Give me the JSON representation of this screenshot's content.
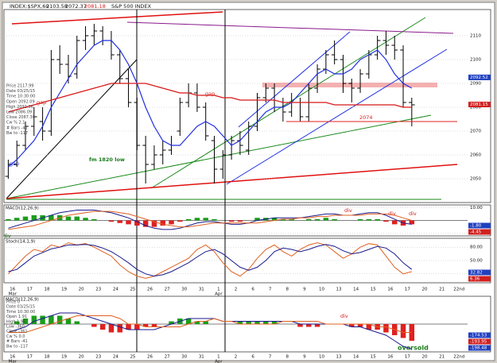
{
  "chart_data": [
    {
      "type": "ohlc",
      "title": "INDEX:$SPX,60",
      "subtitle": "S&P 500 INDEX",
      "header_values": [
        "2103.58",
        "2072.37",
        "2081.18"
      ],
      "categories": [
        "16",
        null,
        "17",
        null,
        "18",
        null,
        "19",
        null,
        "20",
        null,
        "23",
        null,
        "24",
        null,
        "25",
        null,
        "26",
        null,
        "27",
        null,
        "30",
        null,
        "31",
        null,
        "1",
        null,
        "2",
        null,
        "6",
        null,
        "7",
        null,
        "8",
        null,
        "9",
        null,
        "10",
        null,
        "13",
        null,
        "14",
        null,
        "15",
        null,
        "16",
        null,
        "17",
        null,
        "20",
        null,
        "21",
        null,
        "22nd",
        null
      ],
      "months": [
        "Mar",
        "Apr"
      ],
      "open": [
        2051,
        2056,
        2064,
        2072,
        2074,
        2070,
        2100,
        2098,
        2094,
        2108,
        2110,
        2112,
        2108,
        2102,
        2092,
        2082,
        2064,
        2056,
        2060,
        2062,
        2070,
        2082,
        2086,
        2080,
        2066,
        2054,
        2060,
        2066,
        2062,
        2072,
        2084,
        2088,
        2080,
        2078,
        2082,
        2076,
        2088,
        2096,
        2102,
        2100,
        2090,
        2088,
        2094,
        2102,
        2108,
        2106,
        2104,
        2082,
        null,
        null,
        null,
        null,
        null,
        null
      ],
      "high": [
        2058,
        2066,
        2074,
        2080,
        2080,
        2104,
        2106,
        2102,
        2110,
        2114,
        2115,
        2114,
        2112,
        2104,
        2096,
        2084,
        2068,
        2064,
        2066,
        2068,
        2084,
        2090,
        2090,
        2082,
        2068,
        2062,
        2068,
        2070,
        2074,
        2086,
        2090,
        2090,
        2084,
        2086,
        2084,
        2090,
        2098,
        2104,
        2108,
        2102,
        2092,
        2096,
        2104,
        2110,
        2112,
        2110,
        2106,
        2084,
        null,
        null,
        null,
        null,
        null,
        null
      ],
      "low": [
        2050,
        2055,
        2062,
        2068,
        2066,
        2068,
        2094,
        2090,
        2092,
        2104,
        2106,
        2106,
        2100,
        2090,
        2080,
        2062,
        2048,
        2054,
        2056,
        2060,
        2068,
        2080,
        2078,
        2066,
        2048,
        2050,
        2058,
        2060,
        2060,
        2070,
        2082,
        2078,
        2074,
        2076,
        2074,
        2074,
        2086,
        2094,
        2098,
        2086,
        2082,
        2086,
        2092,
        2100,
        2102,
        2100,
        2080,
        2072,
        null,
        null,
        null,
        null,
        null,
        null
      ],
      "close": [
        2056,
        2064,
        2072,
        2076,
        2070,
        2100,
        2098,
        2093,
        2108,
        2110,
        2112,
        2108,
        2102,
        2092,
        2082,
        2064,
        2056,
        2060,
        2062,
        2064,
        2082,
        2086,
        2080,
        2068,
        2054,
        2060,
        2066,
        2064,
        2072,
        2084,
        2088,
        2080,
        2078,
        2082,
        2076,
        2088,
        2096,
        2102,
        2100,
        2090,
        2088,
        2094,
        2102,
        2108,
        2106,
        2104,
        2082,
        2081,
        null,
        null,
        null,
        null,
        null,
        null
      ],
      "bar_color": "#000000",
      "lines": [
        {
          "color": "#1f2fe0",
          "values": [
            2055,
            2058,
            2062,
            2066,
            2072,
            2080,
            2086,
            2092,
            2098,
            2102,
            2106,
            2108,
            2108,
            2104,
            2098,
            2090,
            2080,
            2072,
            2066,
            2064,
            2064,
            2068,
            2072,
            2074,
            2072,
            2068,
            2064,
            2066,
            2070,
            2074,
            2078,
            2080,
            2080,
            2082,
            2086,
            2090,
            2094,
            2096,
            2094,
            2094,
            2096,
            2100,
            2102,
            2104,
            2100,
            2094,
            2090,
            2088,
            null,
            null,
            null,
            null,
            null,
            null
          ]
        },
        {
          "color": "#d81818",
          "values": [
            2078,
            2079,
            2080,
            2081,
            2082,
            2083,
            2084,
            2085,
            2086,
            2087,
            2088,
            2089,
            2090,
            2090,
            2090,
            2090,
            2090,
            2089,
            2088,
            2087,
            2086,
            2086,
            2085,
            2085,
            2085,
            2084,
            2084,
            2083,
            2083,
            2083,
            2083,
            2083,
            2082,
            2082,
            2082,
            2082,
            2082,
            2082,
            2081,
            2081,
            2081,
            2081,
            2081,
            2081,
            2081,
            2081,
            2080,
            2080,
            null,
            null,
            null,
            null,
            null,
            null
          ]
        }
      ],
      "ylim": [
        2040,
        2121
      ],
      "yticks": [
        2050,
        2060,
        2070,
        2080,
        2090,
        2100,
        2110
      ],
      "tags": [
        2092.52,
        2081.15
      ],
      "tag_colors": [
        "#2040c0",
        "#d02020"
      ],
      "hlines": [
        2074
      ],
      "hline_color": "#e02020",
      "annotations": [
        "gap",
        "gap",
        "gap",
        "fm 1820 low"
      ],
      "info_box": [
        "Price 2117.99",
        "Date 03/25/15",
        "Time 10:30:00",
        "Open 2092.09",
        "High 2092.36",
        "Low 2086.09",
        "Close 2087.30",
        "Cw % 2.1",
        "# Bars -41",
        "Bw to -117"
      ]
    },
    {
      "type": "macd",
      "title": "MACD(12,26,9)",
      "ylim": [
        -12,
        12
      ],
      "yticks": [
        {
          "value": 10,
          "label": "10.00"
        },
        {
          "value": -10,
          "label": "-10.00"
        }
      ],
      "series": [
        {
          "color": "#1a1a8c",
          "values": [
            -6,
            -4,
            -2,
            0,
            2,
            4,
            6,
            7,
            8,
            8,
            8,
            7,
            6,
            4,
            2,
            -1,
            -4,
            -6,
            -7,
            -7,
            -6,
            -4,
            -2,
            -1,
            -1,
            -2,
            -3,
            -3,
            -2,
            0,
            1,
            2,
            2,
            2,
            2,
            3,
            4,
            5,
            5,
            4,
            4,
            5,
            6,
            6,
            4,
            1,
            -2,
            -3,
            null,
            null,
            null,
            null,
            null,
            null
          ]
        },
        {
          "color": "#e06020",
          "values": [
            -7,
            -6,
            -5,
            -4,
            -2,
            0,
            2,
            4,
            5,
            6,
            7,
            7,
            7,
            6,
            5,
            3,
            1,
            -1,
            -3,
            -4,
            -5,
            -5,
            -4,
            -3,
            -2,
            -2,
            -2,
            -2,
            -2,
            -2,
            -1,
            0,
            1,
            1,
            2,
            2,
            3,
            3,
            4,
            4,
            4,
            4,
            5,
            5,
            5,
            4,
            2,
            0,
            null,
            null,
            null,
            null,
            null,
            null
          ]
        }
      ],
      "histogram": {
        "up_color": "#1a9e1a",
        "down_color": "#e02020",
        "values": [
          1,
          2,
          3,
          4,
          4,
          4,
          4,
          3,
          3,
          2,
          1,
          0,
          -1,
          -2,
          -3,
          -4,
          -5,
          -5,
          -4,
          -3,
          -1,
          1,
          2,
          2,
          1,
          0,
          -1,
          -1,
          0,
          2,
          2,
          2,
          1,
          1,
          0,
          1,
          1,
          2,
          1,
          0,
          0,
          1,
          1,
          1,
          -1,
          -3,
          -4,
          -3,
          null,
          null,
          null,
          null,
          null,
          null
        ]
      },
      "annotations": [
        "div",
        "div",
        "div",
        "div"
      ],
      "tags": [
        "-1.80",
        "-4.45"
      ]
    },
    {
      "type": "line",
      "title": "Stoch(14,1,9)",
      "ylim": [
        0,
        100
      ],
      "yticks": [
        {
          "value": 80,
          "label": "80.00"
        },
        {
          "value": 50,
          "label": "50.00"
        },
        {
          "value": 20,
          "label": "20.00"
        }
      ],
      "series": [
        {
          "color": "#e06020",
          "values": [
            20,
            40,
            60,
            75,
            70,
            85,
            80,
            90,
            85,
            88,
            80,
            70,
            60,
            40,
            25,
            15,
            10,
            15,
            25,
            35,
            45,
            55,
            75,
            85,
            70,
            45,
            25,
            15,
            30,
            55,
            75,
            85,
            70,
            60,
            75,
            85,
            90,
            85,
            70,
            55,
            65,
            80,
            88,
            85,
            60,
            35,
            20,
            25,
            null,
            null,
            null,
            null,
            null,
            null
          ]
        },
        {
          "color": "#1a1a8c",
          "values": [
            25,
            30,
            45,
            60,
            68,
            76,
            80,
            85,
            85,
            86,
            84,
            78,
            70,
            58,
            45,
            30,
            20,
            15,
            18,
            25,
            35,
            45,
            58,
            70,
            75,
            65,
            50,
            35,
            28,
            35,
            50,
            70,
            78,
            75,
            70,
            75,
            82,
            86,
            82,
            72,
            65,
            68,
            75,
            82,
            78,
            65,
            45,
            30,
            null,
            null,
            null,
            null,
            null,
            null
          ]
        }
      ],
      "tags": [
        "32.82",
        "6.36"
      ]
    },
    {
      "type": "macd",
      "title": "MACD(12,26,9)",
      "ylim": [
        -10,
        10
      ],
      "yticks": [],
      "series": [
        {
          "color": "#1a1a8c",
          "values": [
            -3,
            -2,
            -1,
            1,
            2,
            3,
            4,
            4,
            4,
            3,
            2,
            1,
            0,
            -1,
            -2,
            -2,
            -2,
            -2,
            -1,
            0,
            1,
            2,
            2,
            2,
            2,
            1,
            1,
            1,
            1,
            1,
            1,
            1,
            1,
            1,
            0,
            0,
            0,
            0,
            0,
            0,
            -1,
            -1,
            -2,
            -3,
            -4,
            -6,
            -8,
            -9,
            null,
            null,
            null,
            null,
            null,
            null
          ]
        },
        {
          "color": "#e06020",
          "values": [
            -3,
            -3,
            -3,
            -2,
            -1,
            0,
            1,
            2,
            3,
            3,
            3,
            3,
            3,
            2,
            0,
            0,
            -1,
            -1,
            -1,
            -1,
            -1,
            0,
            1,
            1,
            2,
            1,
            1,
            0,
            0,
            0,
            0,
            0,
            1,
            1,
            1,
            1,
            1,
            0,
            0,
            0,
            0,
            0,
            0,
            -1,
            -1,
            -2,
            -3,
            -3,
            null,
            null,
            null,
            null,
            null,
            null
          ]
        }
      ],
      "histogram": {
        "up_color": "#1a9e1a",
        "down_color": "#e02020",
        "values": [
          0,
          1,
          2,
          3,
          3,
          3,
          3,
          2,
          1,
          0,
          -1,
          -2,
          -3,
          -3,
          -2,
          -2,
          -1,
          -1,
          0,
          1,
          2,
          2,
          1,
          1,
          0,
          0,
          0,
          1,
          1,
          1,
          1,
          1,
          0,
          0,
          -1,
          -1,
          -1,
          0,
          0,
          0,
          -1,
          -1,
          -2,
          -2,
          -3,
          -4,
          -5,
          -6,
          null,
          null,
          null,
          null,
          null,
          null
        ]
      },
      "annotations": [
        "div",
        "oversold"
      ],
      "tags": [
        "-174.53",
        "-193.95",
        "-198.48"
      ],
      "info_box": [
        "Price 0",
        "Date 03/25/15",
        "Time 10:30:00",
        "Open 1.91",
        "High 1.96",
        "Low -360",
        "Close -361",
        "Cw % 0.0",
        "# Bars -41",
        "Bw to -117"
      ]
    }
  ]
}
